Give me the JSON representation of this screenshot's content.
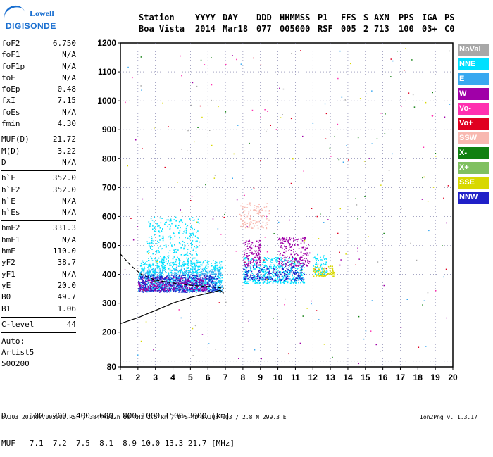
{
  "logo": {
    "line1": "Lowell",
    "line2": "DIGISONDE"
  },
  "header": {
    "labels": [
      "Station",
      "YYYY",
      "DAY",
      "DDD",
      "HHMMSS",
      "P1",
      "FFS",
      "S",
      "AXN",
      "PPS",
      "IGA",
      "PS"
    ],
    "values": [
      "Boa Vista",
      "2014",
      "Mar18",
      "077",
      "005000",
      "RSF",
      "005",
      "2",
      "713",
      "100",
      "03+",
      "C0"
    ]
  },
  "params": [
    [
      [
        "foF2",
        "6.750"
      ],
      [
        "foF1",
        "N/A"
      ],
      [
        "foF1p",
        "N/A"
      ],
      [
        "foE",
        "N/A"
      ],
      [
        "foEp",
        "0.48"
      ],
      [
        "fxI",
        "7.15"
      ],
      [
        "foEs",
        "N/A"
      ],
      [
        "fmin",
        "4.30"
      ]
    ],
    [
      [
        "MUF(D)",
        "21.72"
      ],
      [
        "M(D)",
        "3.22"
      ],
      [
        "D",
        "N/A"
      ]
    ],
    [
      [
        "h`F",
        "352.0"
      ],
      [
        "h`F2",
        "352.0"
      ],
      [
        "h`E",
        "N/A"
      ],
      [
        "h`Es",
        "N/A"
      ]
    ],
    [
      [
        "hmF2",
        "331.3"
      ],
      [
        "hmF1",
        "N/A"
      ],
      [
        "hmE",
        "110.0"
      ],
      [
        "yF2",
        "38.7"
      ],
      [
        "yF1",
        "N/A"
      ],
      [
        "yE",
        "20.0"
      ],
      [
        "B0",
        "49.7"
      ],
      [
        "B1",
        "1.06"
      ]
    ],
    [
      [
        "C-level",
        "44"
      ]
    ]
  ],
  "auto": [
    "Auto:",
    "Artist5",
    "500200"
  ],
  "mufTable": {
    "dLabel": "D",
    "dValues": [
      "100",
      "200",
      "400",
      "600",
      "800",
      "1000",
      "1500",
      "3000"
    ],
    "dUnit": "[km]",
    "mufLabel": "MUF",
    "mufValues": [
      "7.1",
      "7.2",
      "7.5",
      "8.1",
      "8.9",
      "10.0",
      "13.3",
      "21.7"
    ],
    "mufUnit": "[MHz]"
  },
  "footer": {
    "left": "BVJ03_2014077005000.RSF / 384fx512h 50 kHz 2.5 km / DPS-4D BVJ03 003 / 2.8 N 299.3 E",
    "right": "Ion2Png v. 1.3.17"
  },
  "legend": [
    {
      "label": "NoVal",
      "color": "#a8a8a8"
    },
    {
      "label": "NNE",
      "color": "#00e0ff"
    },
    {
      "label": "E",
      "color": "#38a8f0"
    },
    {
      "label": "W",
      "color": "#a000a8"
    },
    {
      "label": "Vo-",
      "color": "#ff30b0"
    },
    {
      "label": "Vo+",
      "color": "#e00020"
    },
    {
      "label": "SSW",
      "color": "#f8b8b0"
    },
    {
      "label": "X-",
      "color": "#108010"
    },
    {
      "label": "X+",
      "color": "#80c060"
    },
    {
      "label": "SSE",
      "color": "#d8d800"
    },
    {
      "label": "NNW",
      "color": "#2020c8"
    }
  ],
  "chart_data": {
    "type": "scatter",
    "title": "",
    "xlabel": "",
    "ylabel": "",
    "xlim": [
      1,
      20
    ],
    "ylim": [
      80,
      1200
    ],
    "xticks": [
      "1",
      "2",
      "3",
      "4",
      "5",
      "6",
      "7",
      "8",
      "9",
      "10",
      "11",
      "12",
      "13",
      "14",
      "15",
      "16",
      "17",
      "18",
      "19",
      "20"
    ],
    "yticks": [
      "80",
      "200",
      "300",
      "400",
      "500",
      "600",
      "700",
      "800",
      "900",
      "1000",
      "1100",
      "1200"
    ],
    "grid": true,
    "legend_position": "right",
    "clusters": [
      {
        "series": "NNE",
        "x": [
          2.0,
          6.8
        ],
        "y": [
          345,
          450
        ],
        "n": 900
      },
      {
        "series": "E",
        "x": [
          2.0,
          6.8
        ],
        "y": [
          340,
          420
        ],
        "n": 500
      },
      {
        "series": "NNW",
        "x": [
          2.0,
          6.5
        ],
        "y": [
          340,
          400
        ],
        "n": 500
      },
      {
        "series": "W",
        "x": [
          2.0,
          6.0
        ],
        "y": [
          345,
          390
        ],
        "n": 250
      },
      {
        "series": "NNE",
        "x": [
          2.5,
          5.5
        ],
        "y": [
          450,
          600
        ],
        "n": 250
      },
      {
        "series": "NNE",
        "x": [
          8.0,
          11.5
        ],
        "y": [
          370,
          460
        ],
        "n": 450
      },
      {
        "series": "W",
        "x": [
          8.0,
          9.0
        ],
        "y": [
          430,
          520
        ],
        "n": 120
      },
      {
        "series": "W",
        "x": [
          10.0,
          11.8
        ],
        "y": [
          430,
          530
        ],
        "n": 200
      },
      {
        "series": "SSW",
        "x": [
          7.8,
          9.5
        ],
        "y": [
          560,
          650
        ],
        "n": 120
      },
      {
        "series": "NNW",
        "x": [
          8.0,
          11.5
        ],
        "y": [
          380,
          430
        ],
        "n": 200
      },
      {
        "series": "SSE",
        "x": [
          12.0,
          13.2
        ],
        "y": [
          395,
          430
        ],
        "n": 100
      },
      {
        "series": "NNE",
        "x": [
          12.0,
          12.8
        ],
        "y": [
          400,
          470
        ],
        "n": 60
      }
    ],
    "trace": {
      "x": [
        1.0,
        2.0,
        3.0,
        4.0,
        5.0,
        6.0,
        6.4,
        6.7,
        6.9
      ],
      "y": [
        230,
        250,
        275,
        300,
        320,
        335,
        340,
        345,
        335
      ]
    },
    "trace2": {
      "x": [
        1.0,
        1.6,
        2.2,
        3.0,
        4.0,
        5.0,
        6.0,
        6.9
      ],
      "y": [
        470,
        430,
        400,
        380,
        370,
        362,
        358,
        352
      ]
    }
  }
}
